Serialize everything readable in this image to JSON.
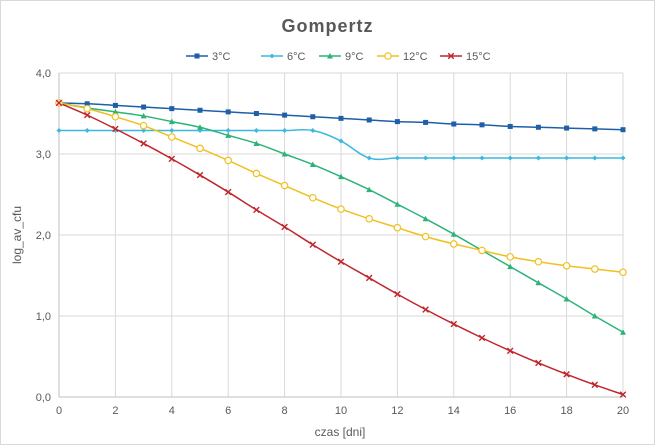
{
  "chart_data": {
    "type": "line",
    "title": "Gompertz",
    "xlabel": "czas [dni]",
    "ylabel": "log_av_cfu",
    "xlim": [
      0,
      20
    ],
    "ylim": [
      0,
      4
    ],
    "x_ticks": [
      "0",
      "2",
      "4",
      "6",
      "8",
      "10",
      "12",
      "14",
      "16",
      "18",
      "20"
    ],
    "y_ticks": [
      "0,0",
      "1,0",
      "2,0",
      "3,0",
      "4,0"
    ],
    "grid": true,
    "legend_position": "top",
    "x": [
      0,
      1,
      2,
      3,
      4,
      5,
      6,
      7,
      8,
      9,
      10,
      11,
      12,
      13,
      14,
      15,
      16,
      17,
      18,
      19,
      20
    ],
    "series": [
      {
        "name": "3°C",
        "color": "#1f5fa8",
        "marker": "square",
        "values": [
          3.63,
          3.62,
          3.6,
          3.58,
          3.56,
          3.54,
          3.52,
          3.5,
          3.48,
          3.46,
          3.44,
          3.42,
          3.4,
          3.39,
          3.37,
          3.36,
          3.34,
          3.33,
          3.32,
          3.31,
          3.3
        ]
      },
      {
        "name": "6°C",
        "color": "#3cb8e0",
        "marker": "diamond",
        "values": [
          3.29,
          3.29,
          3.29,
          3.29,
          3.29,
          3.29,
          3.29,
          3.29,
          3.29,
          3.29,
          3.16,
          2.95,
          2.95,
          2.95,
          2.95,
          2.95,
          2.95,
          2.95,
          2.95,
          2.95,
          2.95
        ]
      },
      {
        "name": "9°C",
        "color": "#2db37a",
        "marker": "triangle",
        "values": [
          3.63,
          3.57,
          3.52,
          3.47,
          3.4,
          3.33,
          3.23,
          3.13,
          3.0,
          2.87,
          2.72,
          2.56,
          2.38,
          2.2,
          2.01,
          1.81,
          1.61,
          1.41,
          1.21,
          1.0,
          0.8
        ]
      },
      {
        "name": "12°C",
        "color": "#f0c020",
        "marker": "circle",
        "values": [
          3.63,
          3.56,
          3.46,
          3.35,
          3.21,
          3.07,
          2.92,
          2.76,
          2.61,
          2.46,
          2.32,
          2.2,
          2.09,
          1.98,
          1.89,
          1.81,
          1.73,
          1.67,
          1.62,
          1.58,
          1.54
        ]
      },
      {
        "name": "15°C",
        "color": "#c0262c",
        "marker": "x",
        "values": [
          3.63,
          3.48,
          3.31,
          3.13,
          2.94,
          2.74,
          2.53,
          2.31,
          2.1,
          1.88,
          1.67,
          1.47,
          1.27,
          1.08,
          0.9,
          0.73,
          0.57,
          0.42,
          0.28,
          0.15,
          0.03
        ]
      }
    ]
  }
}
